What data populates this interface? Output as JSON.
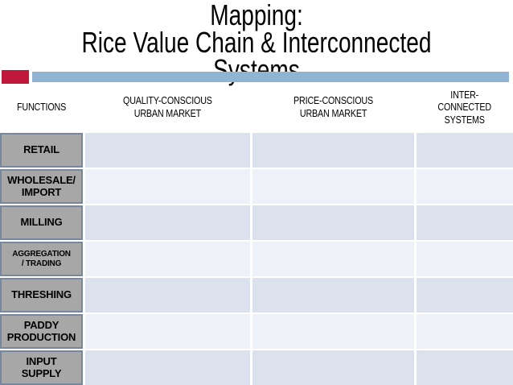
{
  "slide": {
    "title_line1": "Mapping:",
    "title_line2": "Rice Value Chain & Interconnected Systems"
  },
  "colors": {
    "accent_red": "#c0183a",
    "accent_blue": "#92b4d4",
    "row_stripe_dark": "#dbe2ee",
    "row_stripe_light": "#eef1f7",
    "function_box_fill": "#a7a7a7",
    "function_box_border": "#76879e",
    "title_text": "#000000"
  },
  "table": {
    "columns": [
      {
        "label": "FUNCTIONS"
      },
      {
        "label": "QUALITY-CONSCIOUS\nURBAN MARKET"
      },
      {
        "label": "PRICE-CONSCIOUS\nURBAN MARKET"
      },
      {
        "label": "INTER-\nCONNECTED\nSYSTEMS"
      }
    ],
    "rows": [
      {
        "label": "RETAIL",
        "cells": [
          "",
          "",
          ""
        ]
      },
      {
        "label": "WHOLESALE/\nIMPORT",
        "cells": [
          "",
          "",
          ""
        ]
      },
      {
        "label": "MILLING",
        "cells": [
          "",
          "",
          ""
        ]
      },
      {
        "label": "AGGREGATION\n/ TRADING",
        "cells": [
          "",
          "",
          ""
        ]
      },
      {
        "label": "THRESHING",
        "cells": [
          "",
          "",
          ""
        ]
      },
      {
        "label": "PADDY\nPRODUCTION",
        "cells": [
          "",
          "",
          ""
        ]
      },
      {
        "label": "INPUT\nSUPPLY",
        "cells": [
          "",
          "",
          ""
        ]
      }
    ]
  }
}
